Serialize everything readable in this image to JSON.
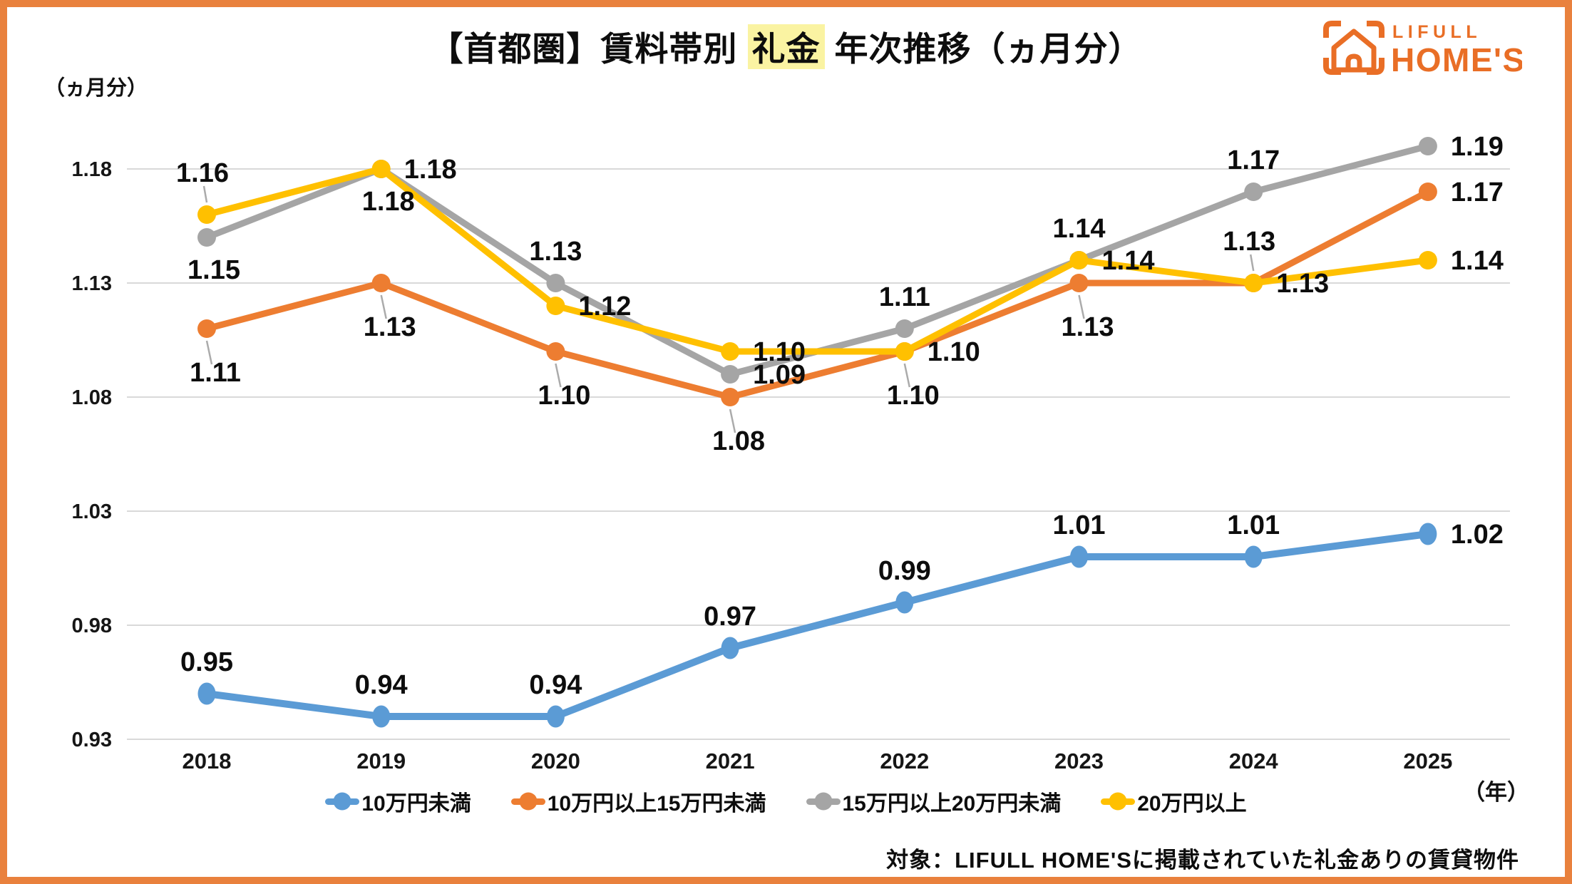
{
  "page": {
    "title_prefix": "【首都圏】賃料帯別 ",
    "title_highlight": "礼金",
    "title_suffix": " 年次推移（ヵ月分）",
    "y_axis_unit": "（ヵ月分）",
    "x_axis_unit": "（年）",
    "note": "対象：LIFULL HOME'Sに掲載されていた礼金ありの賃貸物件",
    "logo": {
      "line1": "LIFULL",
      "line2": "HOME'S"
    }
  },
  "colors": {
    "frame_border": "#E9813D",
    "logo_orange": "#E96E26",
    "grid": "#D9D9D9",
    "leader": "#ABABAB",
    "text": "#111111",
    "highlight_bg": "#FAF3A2",
    "series_blue": "#5B9BD5",
    "series_orange": "#ED7D31",
    "series_gray": "#A5A5A5",
    "series_yellow": "#FFC000"
  },
  "chart_data": {
    "type": "line",
    "title": "【首都圏】賃料帯別 礼金 年次推移（ヵ月分）",
    "xlabel": "年",
    "ylabel": "ヵ月分",
    "x": [
      2018,
      2019,
      2020,
      2021,
      2022,
      2023,
      2024,
      2025
    ],
    "y_ticks": [
      1.18,
      1.13,
      1.08,
      1.03,
      0.98,
      0.93
    ],
    "ylim": [
      0.905,
      1.205
    ],
    "grid": true,
    "legend_position": "bottom",
    "series": [
      {
        "key": "under-100k",
        "name": "10万円未満",
        "color": "#5B9BD5",
        "values": [
          0.95,
          0.94,
          0.94,
          0.97,
          0.99,
          1.01,
          1.01,
          1.02
        ],
        "label_pos": [
          "above",
          "above",
          "above",
          "above",
          "above",
          "above",
          "above",
          "right"
        ]
      },
      {
        "key": "100k-to-150k",
        "name": "10万円以上15万円未満",
        "color": "#ED7D31",
        "values": [
          1.11,
          1.13,
          1.1,
          1.08,
          1.1,
          1.13,
          1.13,
          1.17
        ],
        "label_pos": [
          "below-leader",
          "below-leader",
          "below-leader",
          "below-leader",
          "below-leader",
          "below-leader",
          "above-leader",
          "right"
        ]
      },
      {
        "key": "150k-to-200k",
        "name": "15万円以上20万円未満",
        "color": "#A5A5A5",
        "values": [
          1.15,
          1.18,
          1.13,
          1.09,
          1.11,
          1.14,
          1.17,
          1.19
        ],
        "label_pos": [
          "below",
          "below",
          "above",
          "right",
          "above",
          "above",
          "above",
          "right"
        ]
      },
      {
        "key": "over-200k",
        "name": "20万円以上",
        "color": "#FFC000",
        "values": [
          1.16,
          1.18,
          1.12,
          1.1,
          1.1,
          1.14,
          1.13,
          1.14
        ],
        "label_pos": [
          "above-leader",
          "right",
          "right",
          "right",
          "right",
          "right",
          "right",
          "right"
        ]
      }
    ]
  }
}
